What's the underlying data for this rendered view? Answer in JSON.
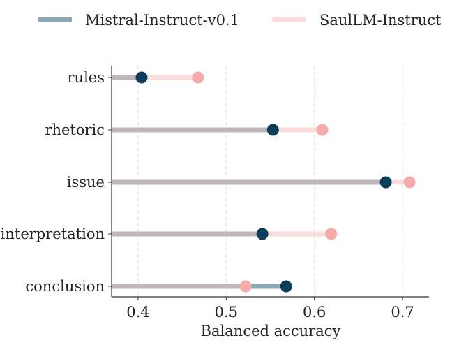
{
  "chart_data": {
    "type": "dumbbell",
    "categories": [
      "rules",
      "rhetoric",
      "issue",
      "interpretation",
      "conclusion"
    ],
    "series": [
      {
        "name": "Mistral-Instruct-v0.1",
        "values": [
          0.404,
          0.553,
          0.681,
          0.541,
          0.568
        ]
      },
      {
        "name": "SaulLM-Instruct",
        "values": [
          0.468,
          0.609,
          0.708,
          0.619,
          0.522
        ]
      }
    ],
    "xlabel": "Balanced accuracy",
    "ylabel": "",
    "xlim": [
      0.37,
      0.73
    ],
    "xticks": [
      0.4,
      0.5,
      0.6,
      0.7
    ],
    "xtick_labels": [
      "0.4",
      "0.5",
      "0.6",
      "0.7"
    ],
    "grid": "vertical-dashed",
    "legend_position": "top",
    "colors": {
      "mistral_point": "#0c3d5a",
      "mistral_line": "#8fa8b8",
      "saul_point": "#f6aaaa",
      "saul_line": "#fbdcdc",
      "shared_line": "#c2b6bd",
      "grid": "#dddddd",
      "axis": "#333333"
    }
  }
}
